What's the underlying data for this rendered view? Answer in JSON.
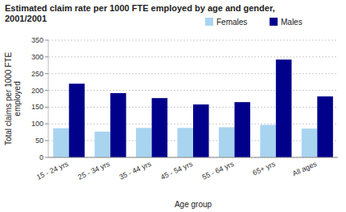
{
  "chart_data": {
    "type": "bar",
    "title": "Estimated claim rate per 1000 FTE employed by age and gender,\n2001/2001",
    "x_label": "Age group",
    "y_label": "Total claims per 1000 FTE\nemployed",
    "categories": [
      "15 - 24 yrs",
      "25 - 34 yrs",
      "35 - 44 yrs",
      "45 - 54 yrs",
      "55 - 64 yrs",
      "65+ yrs",
      "All ages"
    ],
    "series": [
      {
        "name": "Females",
        "color": "#a8d4f0",
        "values": [
          87,
          77,
          88,
          88,
          90,
          97,
          86
        ]
      },
      {
        "name": "Males",
        "color": "#00008b",
        "values": [
          220,
          192,
          177,
          158,
          165,
          292,
          182
        ]
      }
    ],
    "ylim": [
      0,
      350
    ],
    "yticks": [
      0,
      50,
      100,
      150,
      200,
      250,
      300,
      350
    ],
    "grid": true,
    "legend": "right"
  }
}
